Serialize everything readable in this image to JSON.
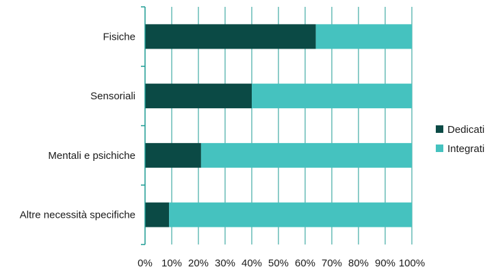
{
  "chart_data": {
    "type": "bar",
    "orientation": "horizontal",
    "stacked": "percent",
    "categories": [
      "Fisiche",
      "Sensoriali",
      "Mentali e psichiche",
      "Altre necessità specifiche"
    ],
    "series": [
      {
        "name": "Dedicati",
        "values": [
          64,
          40,
          21,
          9
        ],
        "color": "#0b4a45"
      },
      {
        "name": "Integrati",
        "values": [
          36,
          60,
          79,
          91
        ],
        "color": "#45c2bf"
      }
    ],
    "xlim": [
      0,
      100
    ],
    "xticks": [
      "0%",
      "10%",
      "20%",
      "30%",
      "40%",
      "50%",
      "60%",
      "70%",
      "80%",
      "90%",
      "100%"
    ],
    "grid": "vertical",
    "legend": "right",
    "gridline_color": "#1a9a92"
  }
}
